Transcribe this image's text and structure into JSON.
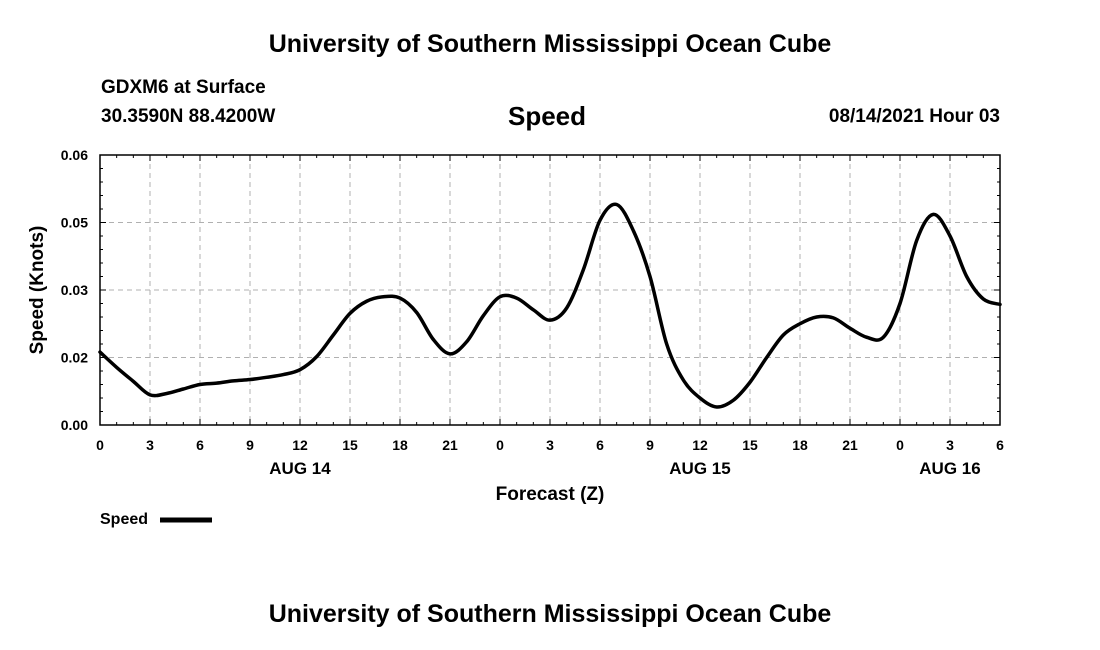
{
  "header": {
    "title": "University of Southern Mississippi Ocean Cube",
    "station": "GDXM6 at Surface",
    "coordinates": "30.3590N  88.4200W",
    "variable": "Speed",
    "run_time": "08/14/2021 Hour 03"
  },
  "footer": {
    "title": "University of Southern Mississippi Ocean Cube"
  },
  "chart_data": {
    "type": "line",
    "title": "Speed",
    "xlabel": "Forecast (Z)",
    "ylabel": "Speed (Knots)",
    "xlim": [
      0,
      54
    ],
    "ylim": [
      0.0,
      0.06
    ],
    "grid": true,
    "x_ticks": [
      0,
      3,
      6,
      9,
      12,
      15,
      18,
      21,
      24,
      27,
      30,
      33,
      36,
      39,
      42,
      45,
      48,
      51,
      54
    ],
    "x_tick_labels": [
      "0",
      "3",
      "6",
      "9",
      "12",
      "15",
      "18",
      "21",
      "0",
      "3",
      "6",
      "9",
      "12",
      "15",
      "18",
      "21",
      "0",
      "3",
      "6"
    ],
    "y_ticks": [
      0.0,
      0.015,
      0.03,
      0.045,
      0.06
    ],
    "y_tick_labels": [
      "0.00",
      "0.02",
      "0.03",
      "0.05",
      "0.06"
    ],
    "date_labels": [
      {
        "x": 12,
        "label": "AUG 14"
      },
      {
        "x": 36,
        "label": "AUG 15"
      },
      {
        "x": 51,
        "label": "AUG 16"
      }
    ],
    "legend": {
      "label": "Speed",
      "position": "bottom-left"
    },
    "series": [
      {
        "name": "Speed",
        "color": "#000000",
        "x": [
          0,
          1,
          2,
          3,
          4,
          5,
          6,
          7,
          8,
          9,
          10,
          11,
          12,
          13,
          14,
          15,
          16,
          17,
          18,
          19,
          20,
          21,
          22,
          23,
          24,
          25,
          26,
          27,
          28,
          29,
          30,
          31,
          32,
          33,
          34,
          35,
          36,
          37,
          38,
          39,
          40,
          41,
          42,
          43,
          44,
          45,
          46,
          47,
          48,
          49,
          50,
          51,
          52,
          53,
          54
        ],
        "y": [
          0.0162,
          0.0128,
          0.0097,
          0.0067,
          0.007,
          0.008,
          0.009,
          0.0093,
          0.0098,
          0.0101,
          0.0106,
          0.0112,
          0.0123,
          0.0152,
          0.02,
          0.0248,
          0.0275,
          0.0285,
          0.0282,
          0.025,
          0.019,
          0.0158,
          0.0185,
          0.0243,
          0.0285,
          0.0282,
          0.0256,
          0.0233,
          0.026,
          0.0345,
          0.0455,
          0.049,
          0.0432,
          0.033,
          0.018,
          0.01,
          0.006,
          0.004,
          0.0055,
          0.0095,
          0.015,
          0.02,
          0.0225,
          0.024,
          0.0238,
          0.0215,
          0.0195,
          0.0195,
          0.027,
          0.041,
          0.0468,
          0.042,
          0.033,
          0.028,
          0.0268
        ]
      }
    ]
  }
}
